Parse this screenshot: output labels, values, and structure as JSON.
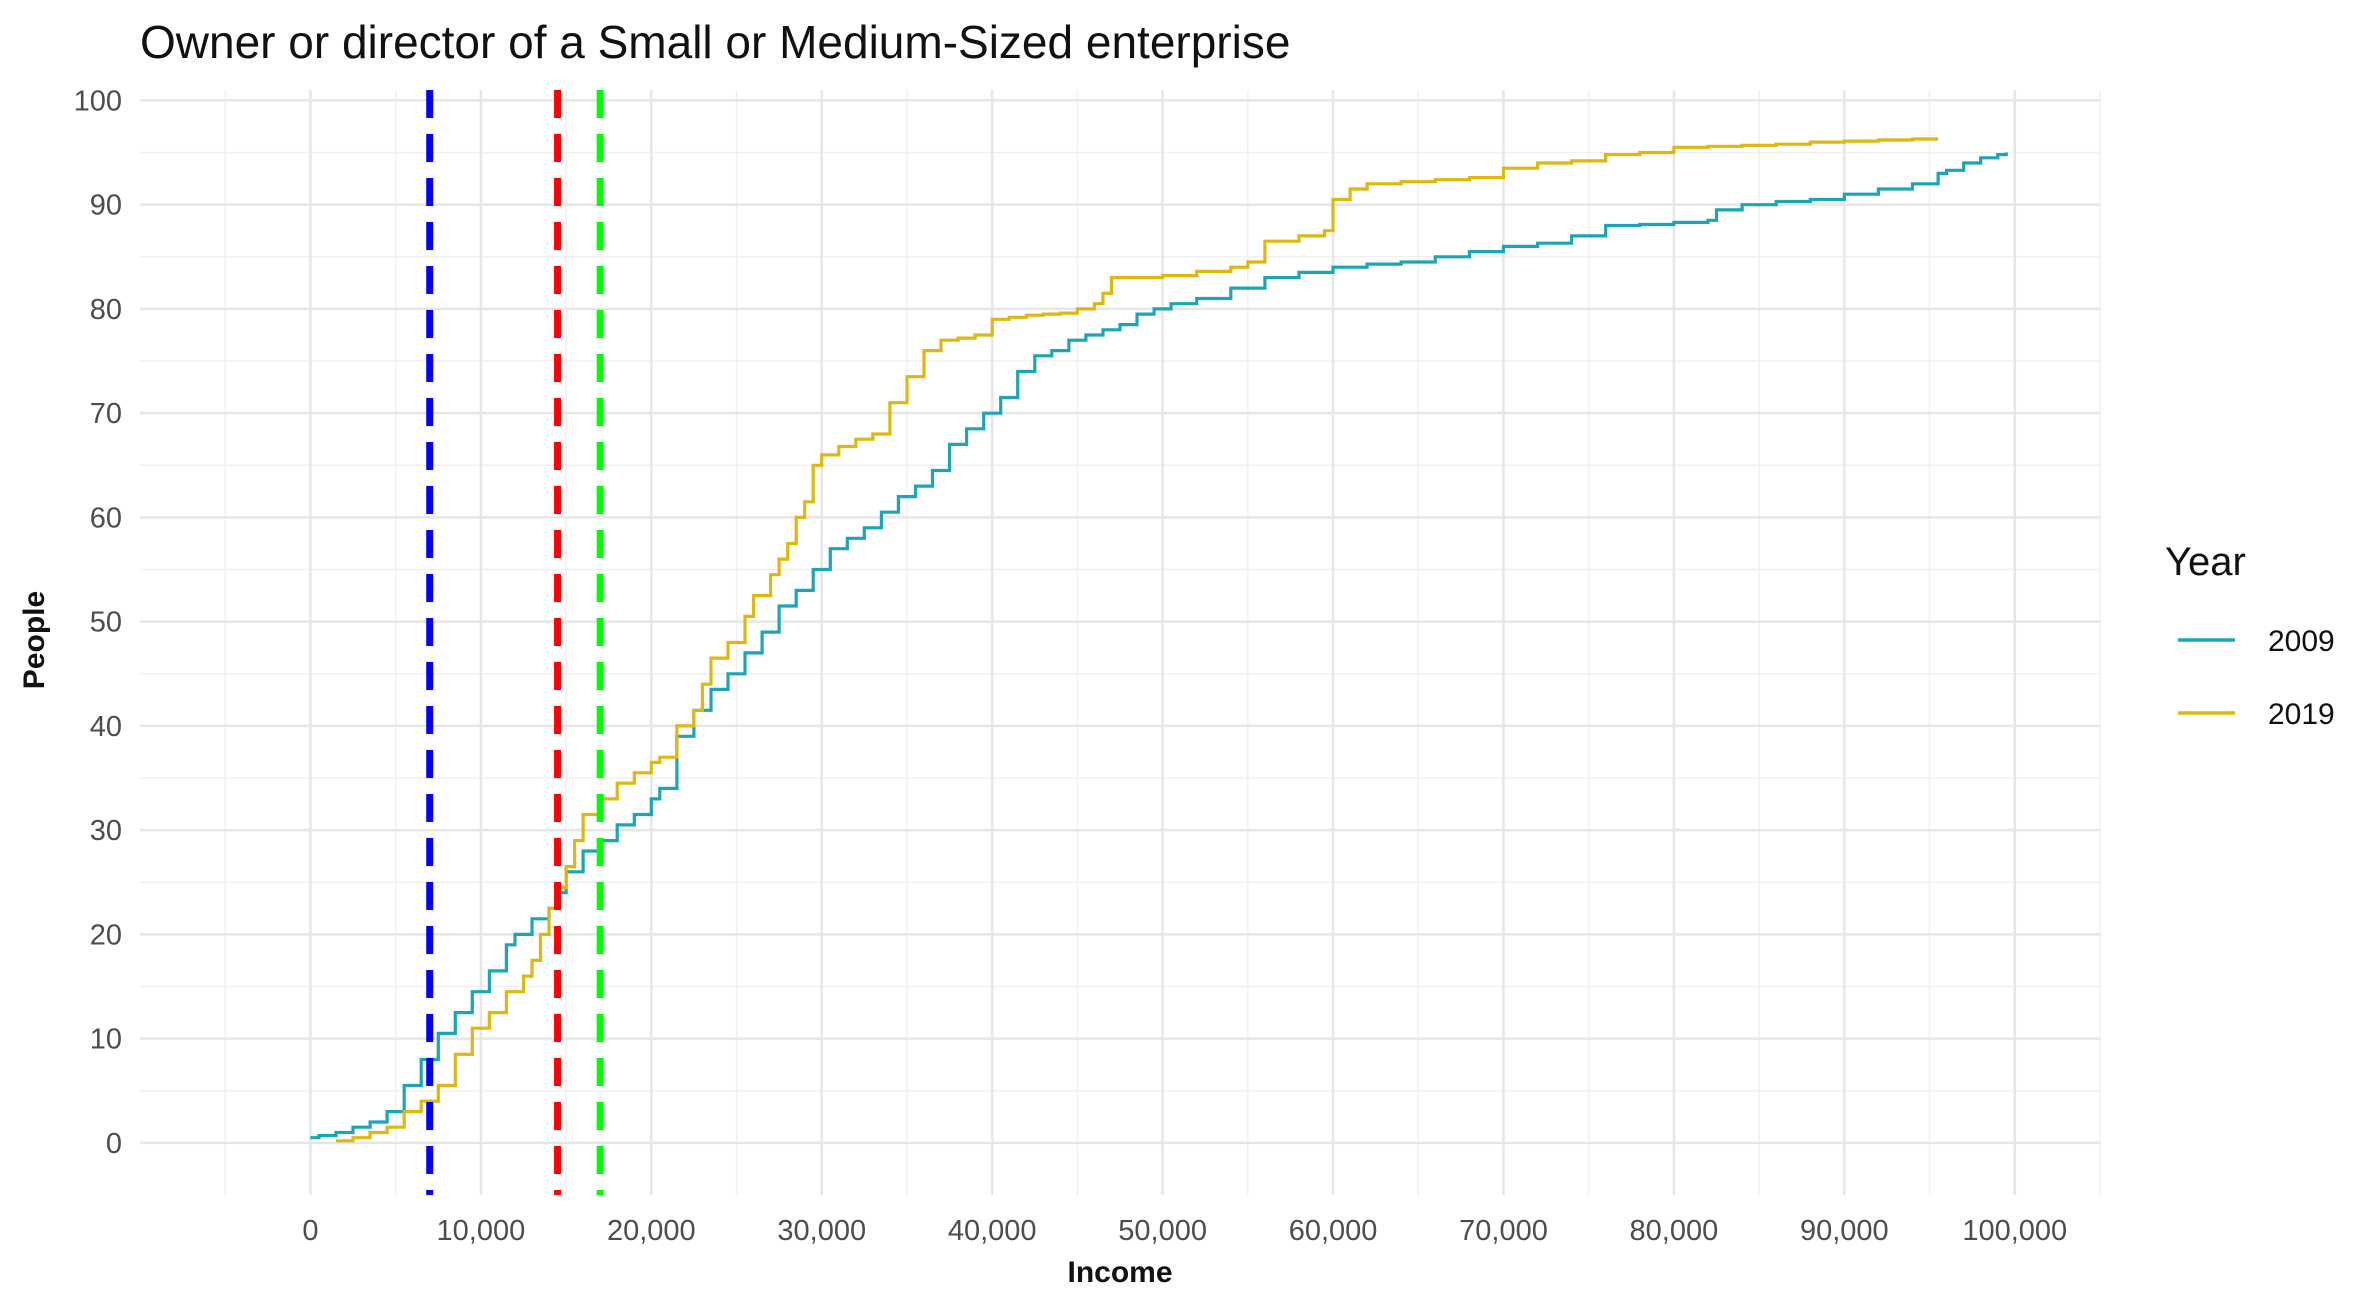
{
  "chart_data": {
    "type": "line",
    "title": "Owner or director of a Small or Medium-Sized enterprise",
    "xlabel": "Income",
    "ylabel": "People",
    "xlim": [
      -10000,
      105000
    ],
    "ylim": [
      -5,
      101
    ],
    "x_ticks": [
      0,
      10000,
      20000,
      30000,
      40000,
      50000,
      60000,
      70000,
      80000,
      90000,
      100000
    ],
    "x_tick_labels": [
      "0",
      "10,000",
      "20,000",
      "30,000",
      "40,000",
      "50,000",
      "60,000",
      "70,000",
      "80,000",
      "90,000",
      "100,000"
    ],
    "y_ticks": [
      0,
      10,
      20,
      30,
      40,
      50,
      60,
      70,
      80,
      90,
      100
    ],
    "y_tick_labels": [
      "0",
      "10",
      "20",
      "30",
      "40",
      "50",
      "60",
      "70",
      "80",
      "90",
      "100"
    ],
    "grid": true,
    "legend": {
      "title": "Year",
      "position": "right"
    },
    "series": [
      {
        "name": "2009",
        "color": "#1aa6b7",
        "x": [
          0,
          500,
          1500,
          2500,
          3500,
          4500,
          5500,
          6500,
          7500,
          8500,
          9500,
          10500,
          11500,
          12000,
          13000,
          14000,
          14500,
          15000,
          16000,
          17000,
          18000,
          19000,
          20000,
          20500,
          21500,
          22500,
          23500,
          24500,
          25500,
          26500,
          27500,
          28500,
          29500,
          30500,
          31500,
          32500,
          33500,
          34500,
          35500,
          36500,
          37500,
          38500,
          39500,
          40500,
          41500,
          42500,
          43500,
          44500,
          45500,
          46500,
          47500,
          48500,
          49500,
          50500,
          52000,
          54000,
          56000,
          58000,
          60000,
          62000,
          64000,
          66000,
          68000,
          70000,
          72000,
          74000,
          76000,
          78000,
          80000,
          82000,
          82500,
          84000,
          86000,
          88000,
          90000,
          92000,
          94000,
          95500,
          96000,
          97000,
          98000,
          99000,
          99500
        ],
        "values": [
          0.5,
          0.7,
          1.0,
          1.5,
          2.0,
          3.0,
          5.5,
          8.0,
          10.5,
          12.5,
          14.5,
          16.5,
          19.0,
          20.0,
          21.5,
          22.5,
          24.0,
          26.0,
          28.0,
          29.0,
          30.5,
          31.5,
          33.0,
          34.0,
          39.0,
          41.5,
          43.5,
          45.0,
          47.0,
          49.0,
          51.5,
          53.0,
          55.0,
          57.0,
          58.0,
          59.0,
          60.5,
          62.0,
          63.0,
          64.5,
          67.0,
          68.5,
          70.0,
          71.5,
          74.0,
          75.5,
          76.0,
          77.0,
          77.5,
          78.0,
          78.5,
          79.5,
          80.0,
          80.5,
          81.0,
          82.0,
          83.0,
          83.5,
          84.0,
          84.3,
          84.5,
          85.0,
          85.5,
          86.0,
          86.3,
          87.0,
          88.0,
          88.1,
          88.3,
          88.5,
          89.5,
          90.0,
          90.3,
          90.5,
          91.0,
          91.5,
          92.0,
          93.0,
          93.3,
          94.0,
          94.5,
          94.8,
          95.0
        ]
      },
      {
        "name": "2019",
        "color": "#dfb70f",
        "x": [
          1500,
          2500,
          3500,
          4500,
          5500,
          6500,
          7500,
          8500,
          9500,
          10500,
          11500,
          12500,
          13000,
          13500,
          14000,
          14500,
          15000,
          15500,
          16000,
          17000,
          18000,
          19000,
          20000,
          20500,
          21500,
          22500,
          23000,
          23500,
          24500,
          25500,
          26000,
          27000,
          27500,
          28000,
          28500,
          29000,
          29500,
          30000,
          31000,
          32000,
          33000,
          34000,
          35000,
          36000,
          37000,
          38000,
          39000,
          40000,
          41000,
          42000,
          43000,
          44000,
          45000,
          46000,
          46500,
          47000,
          48000,
          50000,
          52000,
          54000,
          55000,
          56000,
          58000,
          59500,
          60000,
          61000,
          62000,
          64000,
          66000,
          68000,
          70000,
          72000,
          74000,
          76000,
          78000,
          80000,
          82000,
          84000,
          86000,
          88000,
          90000,
          92000,
          94000,
          95500
        ],
        "values": [
          0.2,
          0.5,
          1.0,
          1.5,
          3.0,
          4.0,
          5.5,
          8.5,
          11.0,
          12.5,
          14.5,
          16.0,
          17.5,
          20.0,
          22.5,
          24.5,
          26.5,
          29.0,
          31.5,
          33.0,
          34.5,
          35.5,
          36.5,
          37.0,
          40.0,
          41.5,
          44.0,
          46.5,
          48.0,
          50.5,
          52.5,
          54.5,
          56.0,
          57.5,
          60.0,
          61.5,
          65.0,
          66.0,
          66.8,
          67.5,
          68.0,
          71.0,
          73.5,
          76.0,
          77.0,
          77.2,
          77.5,
          79.0,
          79.2,
          79.4,
          79.5,
          79.6,
          80.0,
          80.5,
          81.5,
          83.0,
          83.0,
          83.2,
          83.6,
          84.0,
          84.5,
          86.5,
          87.0,
          87.5,
          90.5,
          91.5,
          92.0,
          92.2,
          92.4,
          92.6,
          93.5,
          94.0,
          94.2,
          94.8,
          95.0,
          95.5,
          95.6,
          95.7,
          95.8,
          96.0,
          96.1,
          96.2,
          96.3,
          96.3
        ]
      }
    ],
    "vertical_lines": [
      {
        "x": 7000,
        "color": "#0000ff",
        "style": "dashed"
      },
      {
        "x": 14500,
        "color": "#ff0000",
        "style": "dashed"
      },
      {
        "x": 17000,
        "color": "#00ff00",
        "style": "dashed"
      }
    ]
  }
}
